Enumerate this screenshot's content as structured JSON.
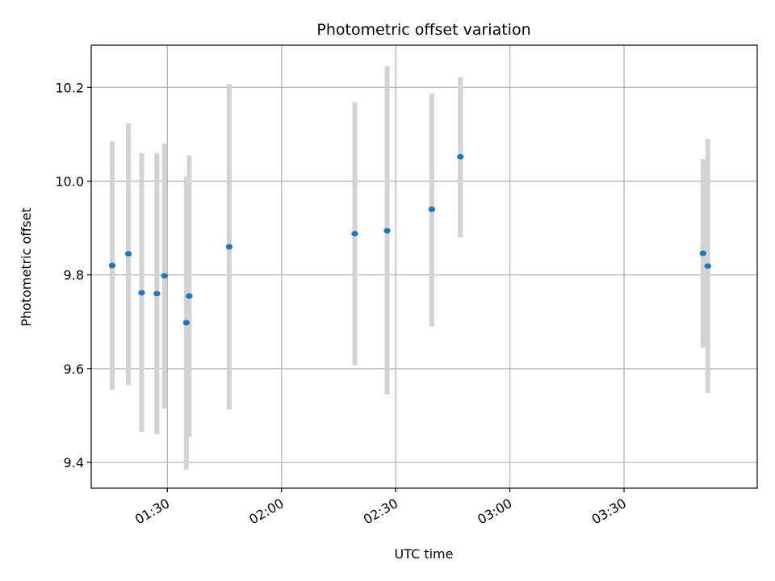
{
  "chart_data": {
    "type": "scatter",
    "title": "Photometric offset variation",
    "xlabel": "UTC time",
    "ylabel": "Photometric offset",
    "x_axis_kind": "time",
    "xlim": [
      "01:10",
      "04:05"
    ],
    "ylim": [
      9.345,
      10.29
    ],
    "grid": true,
    "colors": {
      "point": "#1f77b4",
      "errorbar": "#d3d3d3",
      "grid": "#b0b0b0"
    },
    "x_ticks": [
      "01:30",
      "02:00",
      "02:30",
      "03:00",
      "03:30"
    ],
    "y_ticks": [
      9.4,
      9.6,
      9.8,
      10.0,
      10.2
    ],
    "y_tick_labels": [
      "9.4",
      "9.6",
      "9.8",
      "10.0",
      "10.2"
    ],
    "points": [
      {
        "x": "01:15:30",
        "y": 9.82,
        "y_low": 9.555,
        "y_high": 10.085
      },
      {
        "x": "01:19:45",
        "y": 9.845,
        "y_low": 9.565,
        "y_high": 10.123
      },
      {
        "x": "01:23:15",
        "y": 9.762,
        "y_low": 9.465,
        "y_high": 10.06
      },
      {
        "x": "01:27:15",
        "y": 9.76,
        "y_low": 9.46,
        "y_high": 10.06
      },
      {
        "x": "01:29:15",
        "y": 9.798,
        "y_low": 9.515,
        "y_high": 10.08
      },
      {
        "x": "01:35:00",
        "y": 9.698,
        "y_low": 9.385,
        "y_high": 10.01
      },
      {
        "x": "01:35:45",
        "y": 9.755,
        "y_low": 9.455,
        "y_high": 10.055
      },
      {
        "x": "01:46:15",
        "y": 9.86,
        "y_low": 9.513,
        "y_high": 10.207
      },
      {
        "x": "02:19:15",
        "y": 9.888,
        "y_low": 9.607,
        "y_high": 10.168
      },
      {
        "x": "02:27:45",
        "y": 9.894,
        "y_low": 9.545,
        "y_high": 10.245
      },
      {
        "x": "02:39:30",
        "y": 9.94,
        "y_low": 9.69,
        "y_high": 10.187
      },
      {
        "x": "02:47:00",
        "y": 10.052,
        "y_low": 9.88,
        "y_high": 10.222
      },
      {
        "x": "03:50:45",
        "y": 9.846,
        "y_low": 9.645,
        "y_high": 10.047
      },
      {
        "x": "03:52:00",
        "y": 9.819,
        "y_low": 9.548,
        "y_high": 10.09
      }
    ]
  }
}
